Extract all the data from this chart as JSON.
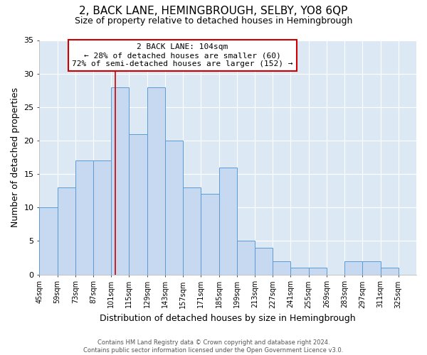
{
  "title": "2, BACK LANE, HEMINGBROUGH, SELBY, YO8 6QP",
  "subtitle": "Size of property relative to detached houses in Hemingbrough",
  "xlabel": "Distribution of detached houses by size in Hemingbrough",
  "ylabel": "Number of detached properties",
  "bin_labels": [
    "45sqm",
    "59sqm",
    "73sqm",
    "87sqm",
    "101sqm",
    "115sqm",
    "129sqm",
    "143sqm",
    "157sqm",
    "171sqm",
    "185sqm",
    "199sqm",
    "213sqm",
    "227sqm",
    "241sqm",
    "255sqm",
    "269sqm",
    "283sqm",
    "297sqm",
    "311sqm",
    "325sqm"
  ],
  "bin_left_edges": [
    45,
    59,
    73,
    87,
    101,
    115,
    129,
    143,
    157,
    171,
    185,
    199,
    213,
    227,
    241,
    255,
    269,
    283,
    297,
    311,
    325
  ],
  "bar_heights": [
    10,
    13,
    17,
    17,
    28,
    21,
    28,
    20,
    13,
    12,
    16,
    5,
    4,
    2,
    1,
    1,
    0,
    2,
    2,
    1,
    0
  ],
  "bar_color": "#c6d9f0",
  "bar_edge_color": "#5b9bd5",
  "vline_x": 104,
  "vline_color": "#cc0000",
  "annotation_title": "2 BACK LANE: 104sqm",
  "annotation_line1": "← 28% of detached houses are smaller (60)",
  "annotation_line2": "72% of semi-detached houses are larger (152) →",
  "annotation_box_facecolor": "#ffffff",
  "annotation_box_edgecolor": "#cc0000",
  "ylim": [
    0,
    35
  ],
  "yticks": [
    0,
    5,
    10,
    15,
    20,
    25,
    30,
    35
  ],
  "ax_facecolor": "#dce9f5",
  "fig_facecolor": "#ffffff",
  "grid_color": "#ffffff",
  "footer_line1": "Contains HM Land Registry data © Crown copyright and database right 2024.",
  "footer_line2": "Contains public sector information licensed under the Open Government Licence v3.0.",
  "title_fontsize": 11,
  "subtitle_fontsize": 9,
  "bin_width": 14
}
